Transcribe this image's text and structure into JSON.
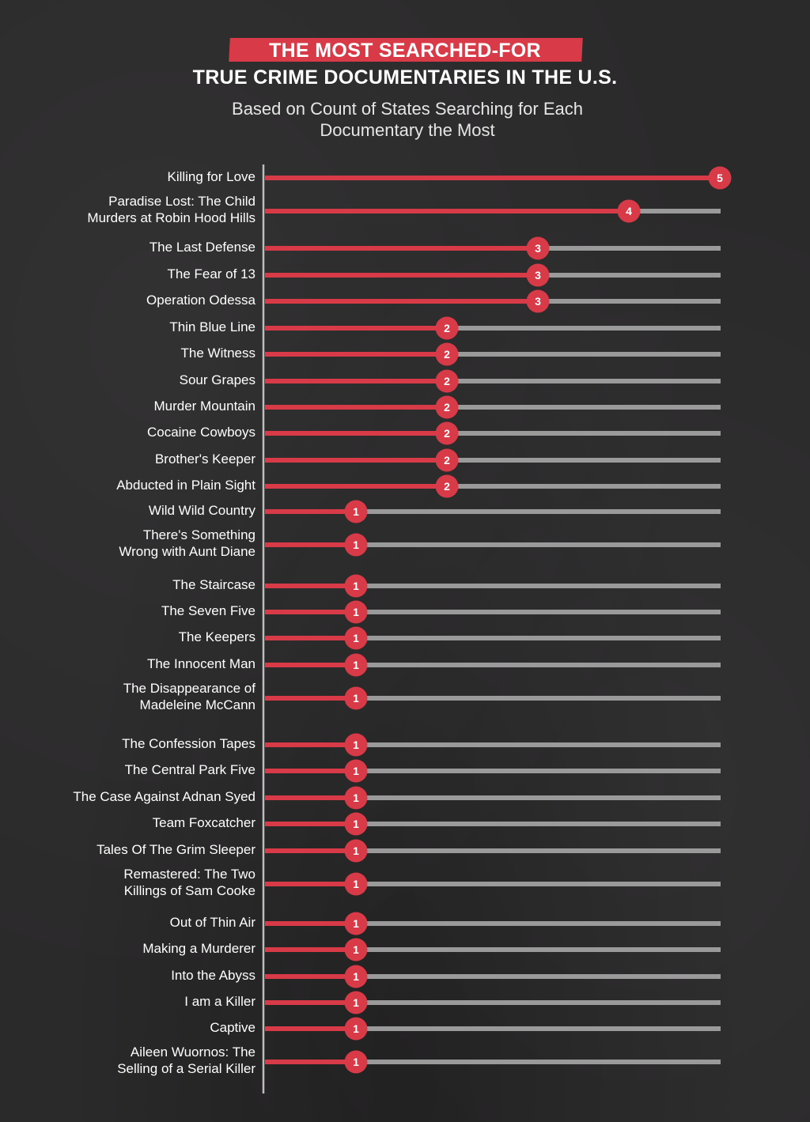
{
  "header": {
    "title_line1": "THE MOST SEARCHED-FOR",
    "title_line2": "TRUE CRIME DOCUMENTARIES IN THE U.S.",
    "subtitle": "Based on Count of States Searching for Each Documentary the Most"
  },
  "colors": {
    "background": "#2b2a2b",
    "accent": "#d83a47",
    "track": "#9a9a9a",
    "text": "#ffffff"
  },
  "chart_data": {
    "type": "bar",
    "orientation": "horizontal",
    "xlim": [
      0,
      5
    ],
    "grid": false,
    "legend": "none",
    "categories": [
      [
        "Killing for Love"
      ],
      [
        "Paradise Lost: The Child",
        "Murders at Robin Hood Hills"
      ],
      [
        "The Last Defense"
      ],
      [
        "The Fear of 13"
      ],
      [
        "Operation Odessa"
      ],
      [
        "Thin Blue Line"
      ],
      [
        "The Witness"
      ],
      [
        "Sour Grapes"
      ],
      [
        "Murder Mountain"
      ],
      [
        "Cocaine Cowboys"
      ],
      [
        "Brother's Keeper"
      ],
      [
        "Abducted in Plain Sight"
      ],
      [
        "Wild Wild Country"
      ],
      [
        "There's Something",
        "Wrong with Aunt Diane"
      ],
      [
        "The Staircase"
      ],
      [
        "The Seven Five"
      ],
      [
        "The Keepers"
      ],
      [
        "The Innocent Man"
      ],
      [
        "The Disappearance of",
        "Madeleine McCann"
      ],
      [
        "The Confession Tapes"
      ],
      [
        "The Central Park Five"
      ],
      [
        "The Case Against Adnan Syed"
      ],
      [
        "Team Foxcatcher"
      ],
      [
        "Tales Of The Grim Sleeper"
      ],
      [
        "Remastered: The Two",
        "Killings of Sam Cooke"
      ],
      [
        "Out of Thin Air"
      ],
      [
        "Making a Murderer"
      ],
      [
        "Into the Abyss"
      ],
      [
        "I am a Killer"
      ],
      [
        "Captive"
      ],
      [
        "Aileen Wuornos: The",
        "Selling of a Serial Killer"
      ]
    ],
    "values": [
      5,
      4,
      3,
      3,
      3,
      2,
      2,
      2,
      2,
      2,
      2,
      2,
      1,
      1,
      1,
      1,
      1,
      1,
      1,
      1,
      1,
      1,
      1,
      1,
      1,
      1,
      1,
      1,
      1,
      1,
      1
    ]
  }
}
